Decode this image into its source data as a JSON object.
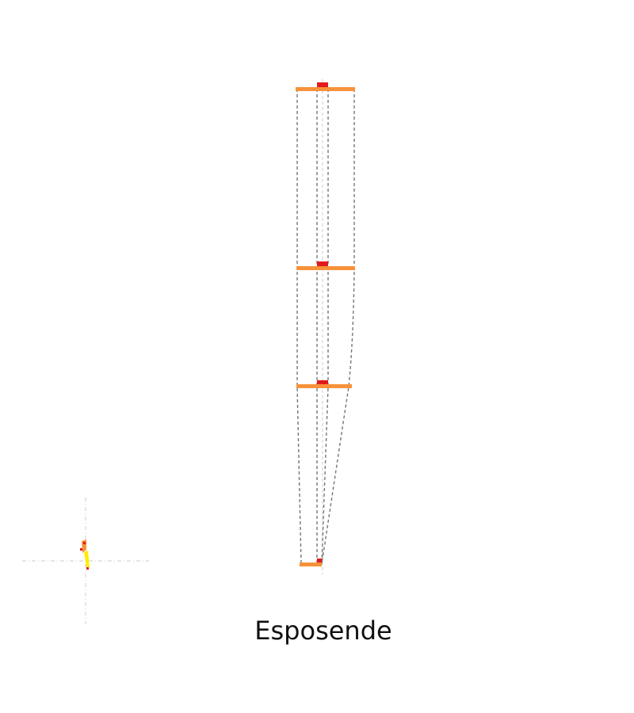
{
  "title": "Esposende",
  "colors": {
    "bar": "#f7923a",
    "marker": "#e31a1c",
    "guide": "#777777",
    "axis": "#cccccc",
    "highlight": "#ffee00"
  }
}
